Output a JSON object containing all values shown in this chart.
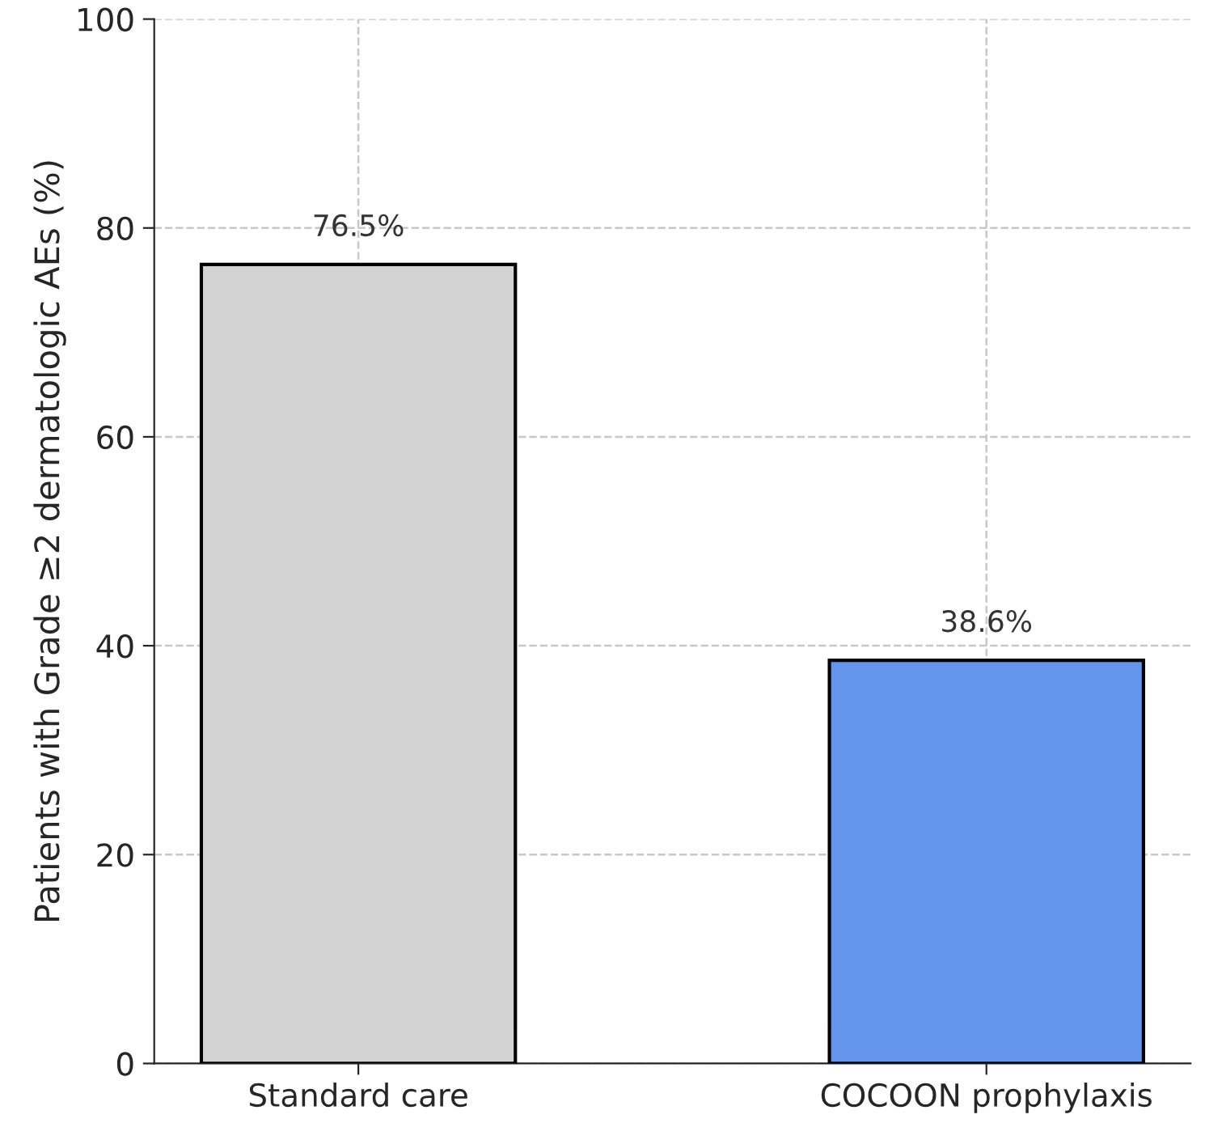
{
  "chart_data": {
    "type": "bar",
    "ylabel": "Patients with Grade ≥2 dermatologic AEs (%)",
    "categories": [
      "Standard care",
      "COCOON prophylaxis"
    ],
    "values": [
      76.5,
      38.6
    ],
    "value_labels": [
      "76.5%",
      "38.6%"
    ],
    "colors": [
      "#d3d3d3",
      "#6495ed"
    ],
    "ylim": [
      0,
      100
    ],
    "yticks": [
      0,
      20,
      40,
      60,
      80,
      100
    ],
    "grid": true
  }
}
